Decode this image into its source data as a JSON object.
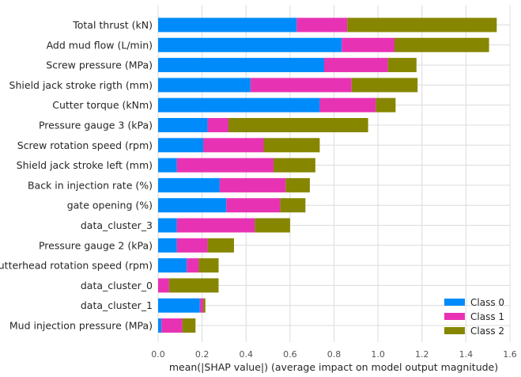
{
  "chart_data": {
    "type": "bar",
    "orientation": "horizontal",
    "stacked": true,
    "categories": [
      "Total thrust (kN)",
      "Add mud flow (L/min)",
      "Screw pressure (MPa)",
      "Shield jack stroke rigth (mm)",
      "Cutter torque (kNm)",
      "Pressure gauge 3 (kPa)",
      "Screw rotation speed (rpm)",
      "Shield jack stroke left (mm)",
      "Back in injection rate (%)",
      "gate opening (%)",
      "data_cluster_3",
      "Pressure gauge 2 (kPa)",
      "Cutterhead rotation speed (rpm)",
      "data_cluster_0",
      "data_cluster_1",
      "Mud injection pressure (MPa)"
    ],
    "series": [
      {
        "name": "Class 0",
        "color": "#008bfb",
        "values": [
          0.63,
          0.835,
          0.755,
          0.42,
          0.735,
          0.225,
          0.205,
          0.085,
          0.28,
          0.31,
          0.085,
          0.085,
          0.13,
          0.0,
          0.19,
          0.015
        ]
      },
      {
        "name": "Class 1",
        "color": "#e832b4",
        "values": [
          0.23,
          0.24,
          0.29,
          0.46,
          0.255,
          0.095,
          0.275,
          0.44,
          0.3,
          0.245,
          0.355,
          0.14,
          0.055,
          0.05,
          0.015,
          0.095
        ]
      },
      {
        "name": "Class 2",
        "color": "#868600",
        "values": [
          0.68,
          0.43,
          0.13,
          0.3,
          0.09,
          0.635,
          0.255,
          0.19,
          0.11,
          0.115,
          0.16,
          0.12,
          0.09,
          0.225,
          0.01,
          0.06
        ]
      }
    ],
    "xlabel": "mean(|SHAP value|) (average impact on model output magnitude)",
    "xlim": [
      0,
      1.6
    ],
    "xticks": [
      "0.0",
      "0.2",
      "0.4",
      "0.6",
      "0.8",
      "1.0",
      "1.2",
      "1.4",
      "1.6"
    ],
    "grid": true,
    "legend_position": "bottom-right"
  }
}
